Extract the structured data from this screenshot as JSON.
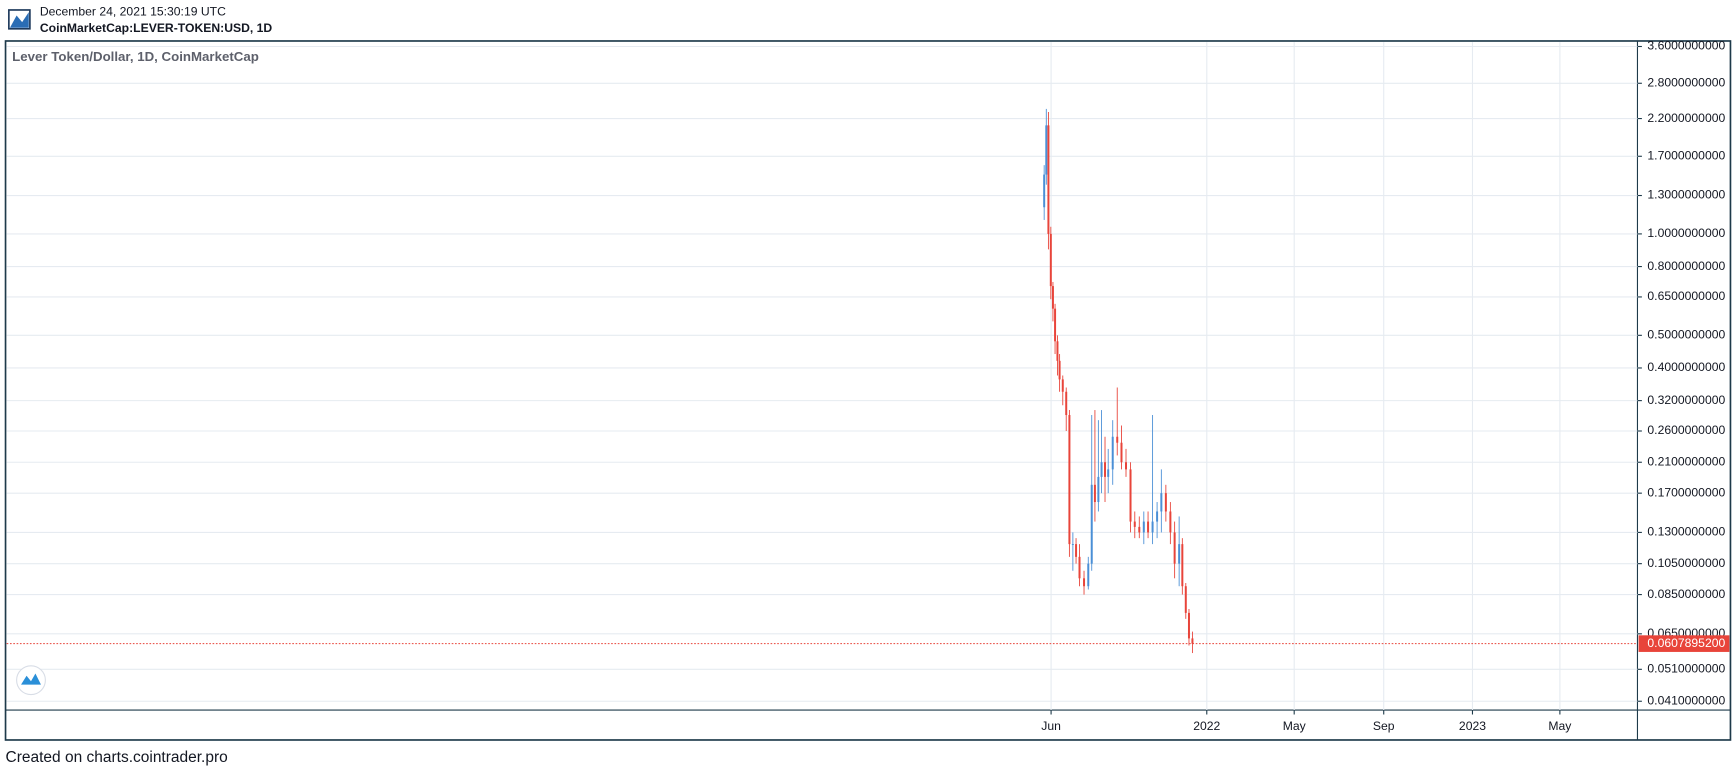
{
  "header": {
    "timestamp": "December 24, 2021 15:30:19 UTC",
    "symbol": "CoinMarketCap:LEVER-TOKEN:USD, 1D"
  },
  "footer": "Created on charts.cointrader.pro",
  "chart_data": {
    "type": "candlestick",
    "title": "Lever Token/Dollar, 1D, CoinMarketCap",
    "log_scale": true,
    "grid": true,
    "up_color": "#4a8fd6",
    "down_color": "#e8443a",
    "xlim": [
      2017.483,
      2023.621
    ],
    "xticks": [
      {
        "value": 2021.414,
        "label": "Jun"
      },
      2022,
      {
        "value": 2022.329,
        "label": "May"
      },
      {
        "value": 2022.666,
        "label": "Sep"
      },
      2023,
      {
        "value": 2023.329,
        "label": "May"
      }
    ],
    "ylim": [
      0.0386,
      3.71
    ],
    "yticks": [
      {
        "value": 3.6,
        "label": "3.6000000000"
      },
      {
        "value": 2.8,
        "label": "2.8000000000"
      },
      {
        "value": 2.2,
        "label": "2.2000000000"
      },
      {
        "value": 1.7,
        "label": "1.7000000000"
      },
      {
        "value": 1.3,
        "label": "1.3000000000"
      },
      {
        "value": 1.0,
        "label": "1.0000000000"
      },
      {
        "value": 0.8,
        "label": "0.8000000000"
      },
      {
        "value": 0.65,
        "label": "0.6500000000"
      },
      {
        "value": 0.5,
        "label": "0.5000000000"
      },
      {
        "value": 0.4,
        "label": "0.4000000000"
      },
      {
        "value": 0.32,
        "label": "0.3200000000"
      },
      {
        "value": 0.26,
        "label": "0.2600000000"
      },
      {
        "value": 0.21,
        "label": "0.2100000000"
      },
      {
        "value": 0.17,
        "label": "0.1700000000"
      },
      {
        "value": 0.13,
        "label": "0.1300000000"
      },
      {
        "value": 0.105,
        "label": "0.1050000000"
      },
      {
        "value": 0.085,
        "label": "0.0850000000"
      },
      {
        "value": 0.065,
        "label": "0.0650000000"
      },
      {
        "value": 0.051,
        "label": "0.0510000000"
      },
      {
        "value": 0.041,
        "label": "0.0410000000"
      }
    ],
    "last_price": {
      "value": 0.06078952,
      "label": "0.0607895200"
    },
    "x": [
      2021.388,
      2021.396,
      2021.404,
      2021.413,
      2021.421,
      2021.429,
      2021.438,
      2021.446,
      2021.458,
      2021.471,
      2021.483,
      2021.496,
      2021.508,
      2021.521,
      2021.538,
      2021.554,
      2021.567,
      2021.579,
      2021.592,
      2021.604,
      2021.617,
      2021.629,
      2021.646,
      2021.663,
      2021.679,
      2021.696,
      2021.713,
      2021.729,
      2021.746,
      2021.763,
      2021.779,
      2021.796,
      2021.813,
      2021.829,
      2021.846,
      2021.863,
      2021.879,
      2021.896,
      2021.908,
      2021.921,
      2021.933,
      2021.946
    ],
    "open": [
      1.2,
      1.5,
      2.1,
      1.0,
      0.7,
      0.6,
      0.48,
      0.42,
      0.37,
      0.34,
      0.29,
      0.12,
      0.12,
      0.11,
      0.095,
      0.09,
      0.105,
      0.18,
      0.16,
      0.19,
      0.21,
      0.19,
      0.2,
      0.25,
      0.24,
      0.21,
      0.2,
      0.14,
      0.135,
      0.13,
      0.14,
      0.13,
      0.14,
      0.15,
      0.17,
      0.15,
      0.13,
      0.105,
      0.12,
      0.09,
      0.075,
      0.063
    ],
    "high": [
      1.6,
      2.35,
      2.3,
      1.05,
      0.72,
      0.62,
      0.5,
      0.44,
      0.38,
      0.35,
      0.3,
      0.13,
      0.125,
      0.12,
      0.1,
      0.11,
      0.29,
      0.3,
      0.28,
      0.3,
      0.25,
      0.23,
      0.28,
      0.35,
      0.27,
      0.23,
      0.21,
      0.15,
      0.145,
      0.15,
      0.15,
      0.29,
      0.16,
      0.2,
      0.18,
      0.16,
      0.14,
      0.145,
      0.125,
      0.092,
      0.077,
      0.066
    ],
    "low": [
      1.1,
      1.4,
      0.9,
      0.64,
      0.55,
      0.44,
      0.38,
      0.34,
      0.31,
      0.26,
      0.11,
      0.1,
      0.105,
      0.09,
      0.085,
      0.088,
      0.1,
      0.14,
      0.15,
      0.17,
      0.16,
      0.17,
      0.18,
      0.22,
      0.2,
      0.19,
      0.13,
      0.125,
      0.125,
      0.12,
      0.125,
      0.12,
      0.125,
      0.13,
      0.14,
      0.12,
      0.095,
      0.09,
      0.085,
      0.072,
      0.06,
      0.057
    ],
    "close": [
      1.5,
      2.1,
      1.0,
      0.7,
      0.6,
      0.48,
      0.42,
      0.37,
      0.34,
      0.29,
      0.12,
      0.12,
      0.11,
      0.095,
      0.09,
      0.105,
      0.18,
      0.16,
      0.19,
      0.21,
      0.19,
      0.2,
      0.25,
      0.24,
      0.21,
      0.2,
      0.14,
      0.135,
      0.13,
      0.14,
      0.13,
      0.14,
      0.15,
      0.17,
      0.15,
      0.13,
      0.105,
      0.12,
      0.09,
      0.075,
      0.063,
      0.06078952
    ]
  }
}
